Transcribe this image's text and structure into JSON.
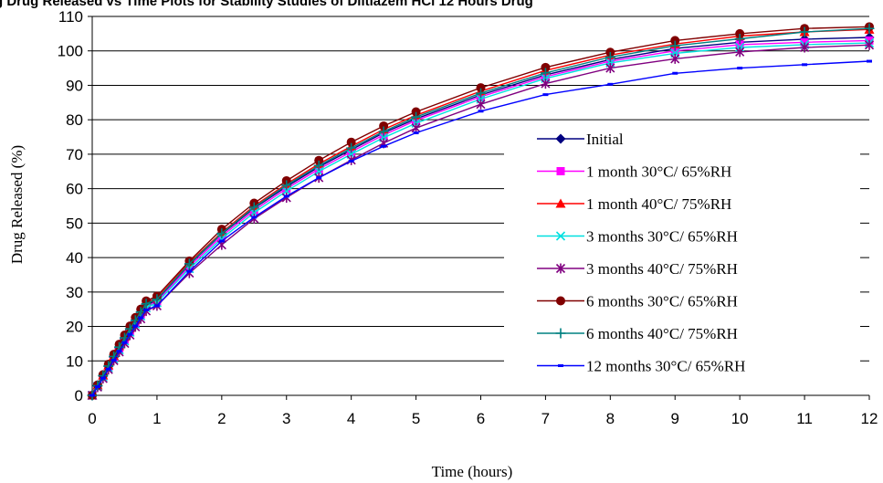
{
  "chart_data": {
    "type": "line",
    "title": "",
    "clipped_title": "g Drug Released vs Time Plots for Stability Studies of Diltiazem HCl 12 Hours Drug",
    "xlabel": "Time (hours)",
    "ylabel": "Drug Released (%)",
    "xlim": [
      0,
      12
    ],
    "ylim": [
      0,
      110
    ],
    "xticks": [
      0,
      1,
      2,
      3,
      4,
      5,
      6,
      7,
      8,
      9,
      10,
      11,
      12
    ],
    "yticks": [
      0,
      10,
      20,
      30,
      40,
      50,
      60,
      70,
      80,
      90,
      100,
      110
    ],
    "grid": "horizontal",
    "legend_position": "right",
    "x": [
      0,
      0.083,
      0.167,
      0.25,
      0.333,
      0.417,
      0.5,
      0.583,
      0.667,
      0.75,
      0.833,
      1,
      1.5,
      2,
      2.5,
      3,
      3.5,
      4,
      4.5,
      5,
      6,
      7,
      8,
      9,
      10,
      11,
      12
    ],
    "series": [
      {
        "name": "Initial",
        "color": "#000080",
        "marker": "diamond",
        "values": [
          0,
          2.8,
          5.6,
          8.4,
          11.1,
          13.8,
          16.4,
          18.9,
          21.4,
          23.8,
          26.2,
          27.7,
          38.0,
          46.8,
          54.3,
          60.6,
          66.3,
          71.3,
          76.2,
          80.3,
          87.2,
          93.0,
          97.5,
          100.7,
          102.5,
          103.4,
          103.9
        ]
      },
      {
        "name": "1 month 30°C/ 65%RH",
        "color": "#ff00ff",
        "marker": "square",
        "values": [
          0,
          2.7,
          5.4,
          8.2,
          10.9,
          13.5,
          16.1,
          18.6,
          21.1,
          23.5,
          25.8,
          27.2,
          37.4,
          46.2,
          53.7,
          60.0,
          65.7,
          70.7,
          75.6,
          79.8,
          86.7,
          92.5,
          97.0,
          100.0,
          101.8,
          102.5,
          103.0
        ]
      },
      {
        "name": "1 month 40°C/ 75%RH",
        "color": "#ff0000",
        "marker": "triangle",
        "values": [
          0,
          2.9,
          5.8,
          8.7,
          11.5,
          14.3,
          17.0,
          19.6,
          22.1,
          24.6,
          27.0,
          28.2,
          38.5,
          47.3,
          55.0,
          61.4,
          67.2,
          72.3,
          77.2,
          81.3,
          88.3,
          94.3,
          98.8,
          102.0,
          104.3,
          105.5,
          106.2
        ]
      },
      {
        "name": "3 months 30°C/ 65%RH",
        "color": "#00e0e0",
        "marker": "x",
        "values": [
          0,
          2.6,
          5.3,
          8.0,
          10.6,
          13.2,
          15.8,
          18.3,
          20.7,
          23.0,
          25.4,
          26.9,
          36.8,
          45.5,
          53.0,
          59.3,
          65.0,
          70.0,
          74.8,
          79.0,
          86.0,
          92.0,
          96.5,
          99.3,
          101.0,
          101.8,
          102.3
        ]
      },
      {
        "name": "3 months 40°C/ 75%RH",
        "color": "#800080",
        "marker": "star",
        "values": [
          0,
          2.4,
          4.9,
          7.5,
          10.1,
          12.6,
          15.1,
          17.5,
          19.9,
          22.2,
          24.5,
          26.0,
          35.5,
          43.7,
          51.3,
          57.4,
          63.2,
          68.3,
          73.2,
          77.6,
          84.5,
          90.5,
          95.0,
          97.7,
          99.7,
          101.0,
          101.7
        ]
      },
      {
        "name": "6 months 30°C/ 65%RH",
        "color": "#800000",
        "marker": "circle",
        "values": [
          0,
          3.0,
          6.0,
          9.0,
          11.9,
          14.8,
          17.5,
          20.1,
          22.6,
          25.0,
          27.4,
          28.8,
          39.0,
          48.2,
          55.8,
          62.3,
          68.2,
          73.5,
          78.2,
          82.3,
          89.3,
          95.2,
          99.6,
          103.0,
          105.0,
          106.5,
          107.0
        ]
      },
      {
        "name": "6 months 40°C/ 75%RH",
        "color": "#008080",
        "marker": "plus",
        "values": [
          0,
          2.8,
          5.7,
          8.5,
          11.3,
          14.0,
          16.7,
          19.3,
          21.8,
          24.2,
          26.6,
          27.9,
          38.2,
          47.0,
          54.6,
          61.0,
          66.7,
          71.8,
          76.6,
          80.8,
          87.7,
          93.6,
          98.2,
          101.5,
          103.5,
          105.5,
          106.5
        ]
      },
      {
        "name": "12 months 30°C/ 65%RH",
        "color": "#0000ff",
        "marker": "dash",
        "values": [
          0,
          2.5,
          5.0,
          7.6,
          10.2,
          12.8,
          15.3,
          17.7,
          20.1,
          22.5,
          24.8,
          26.0,
          36.0,
          44.8,
          51.7,
          57.8,
          63.2,
          68.0,
          72.3,
          76.2,
          82.5,
          87.3,
          90.3,
          93.5,
          95.0,
          96.0,
          97.0
        ]
      }
    ]
  }
}
